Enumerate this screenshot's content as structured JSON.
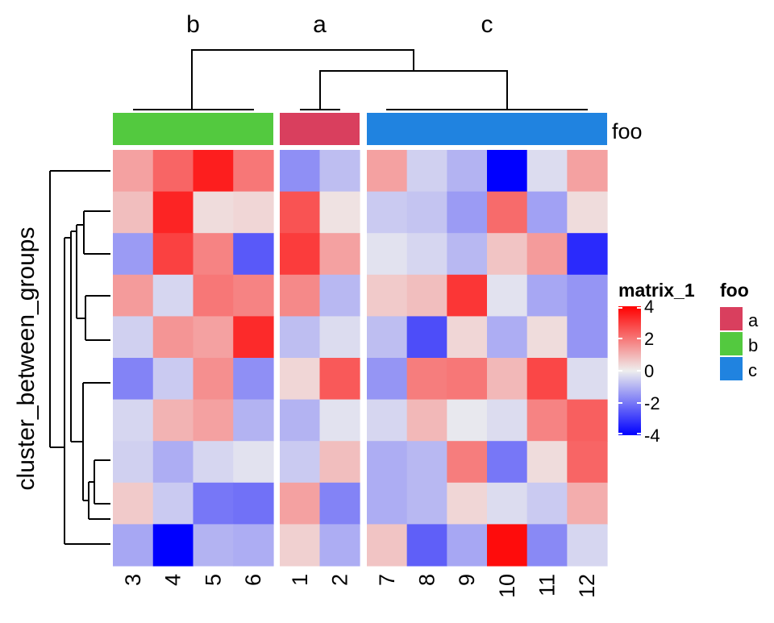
{
  "chart_data": {
    "type": "heatmap",
    "ylabel": "cluster_between_groups",
    "columns": [
      "3",
      "4",
      "5",
      "6",
      "1",
      "2",
      "7",
      "8",
      "9",
      "10",
      "11",
      "12"
    ],
    "column_slices": [
      {
        "name": "b",
        "columns": [
          "3",
          "4",
          "5",
          "6"
        ]
      },
      {
        "name": "a",
        "columns": [
          "1",
          "2"
        ]
      },
      {
        "name": "c",
        "columns": [
          "7",
          "8",
          "9",
          "10",
          "11",
          "12"
        ]
      }
    ],
    "row_count": 10,
    "values": [
      [
        1.3,
        2.3,
        3.5,
        2.0,
        -1.6,
        -0.8,
        1.3,
        -0.5,
        -1.0,
        -4.0,
        -0.3,
        1.3
      ],
      [
        0.8,
        3.4,
        0.3,
        0.4,
        2.6,
        0.2,
        -0.6,
        -0.7,
        -1.4,
        2.2,
        -1.3,
        0.3
      ],
      [
        -1.4,
        2.9,
        1.8,
        -2.5,
        3.0,
        1.3,
        -0.2,
        -0.4,
        -0.9,
        0.7,
        1.4,
        -3.3
      ],
      [
        1.4,
        -0.4,
        2.0,
        1.8,
        1.7,
        -0.9,
        0.6,
        0.8,
        3.1,
        -0.2,
        -1.2,
        -1.5
      ],
      [
        -0.5,
        1.5,
        1.3,
        3.3,
        -0.8,
        -0.3,
        -0.8,
        -2.7,
        0.4,
        -1.1,
        0.3,
        -1.5
      ],
      [
        -1.8,
        -0.6,
        1.6,
        -1.6,
        0.4,
        2.5,
        -1.5,
        1.9,
        2.0,
        0.9,
        2.8,
        -0.3
      ],
      [
        -0.4,
        1.0,
        1.3,
        -1.0,
        -1.0,
        -0.2,
        -0.4,
        0.9,
        -0.1,
        -0.3,
        1.8,
        2.4
      ],
      [
        -0.5,
        -1.1,
        -0.4,
        -0.2,
        -0.6,
        0.8,
        -1.1,
        -0.9,
        1.9,
        -2.0,
        0.3,
        2.3
      ],
      [
        0.6,
        -0.6,
        -2.0,
        -2.1,
        1.3,
        -1.8,
        -1.1,
        -0.9,
        0.4,
        -0.3,
        -0.6,
        1.1
      ],
      [
        -1.2,
        -4.0,
        -1.0,
        -1.1,
        0.5,
        -1.1,
        0.7,
        -2.4,
        -1.2,
        3.8,
        -1.7,
        -0.4
      ]
    ],
    "color_scale": {
      "title": "matrix_1",
      "stops": [
        {
          "value": -4,
          "color": "#0000ff"
        },
        {
          "value": 0,
          "color": "#eeeeee"
        },
        {
          "value": 4,
          "color": "#ff0000"
        }
      ],
      "ticks": [
        4,
        2,
        0,
        -2,
        -4
      ],
      "tick_labels": [
        "4",
        "2",
        "0",
        "-2",
        "-4"
      ]
    },
    "annotation": {
      "name": "foo",
      "categories": [
        {
          "label": "a",
          "color": "#d93f5e"
        },
        {
          "label": "b",
          "color": "#53c93f"
        },
        {
          "label": "c",
          "color": "#2083e0"
        }
      ]
    }
  }
}
